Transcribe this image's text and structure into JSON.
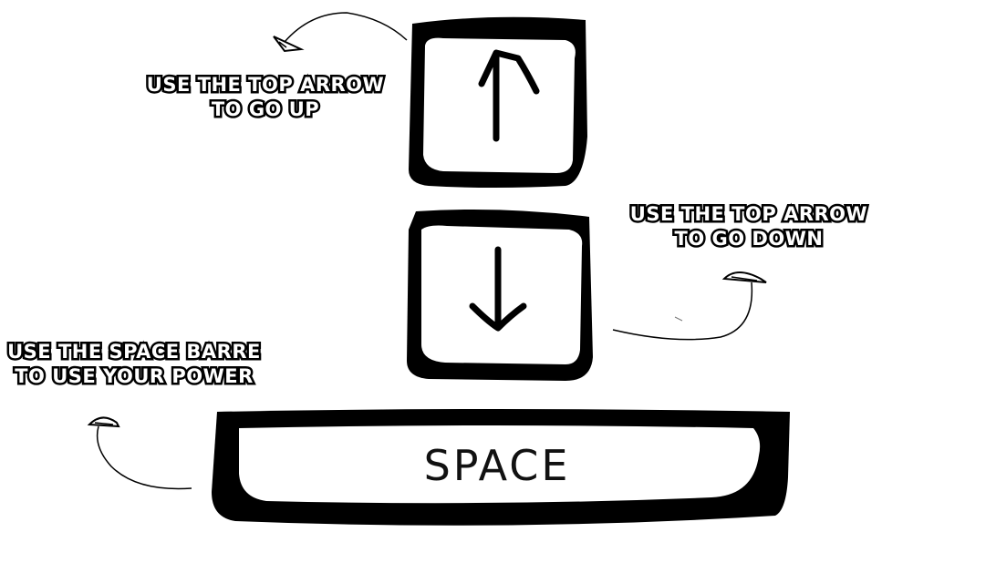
{
  "controls": {
    "up": {
      "key_icon": "arrow-up-icon",
      "caption_line1": "USE THE TOP ARROW",
      "caption_line2": "TO GO UP"
    },
    "down": {
      "key_icon": "arrow-down-icon",
      "caption_line1": "USE THE TOP ARROW",
      "caption_line2": "TO GO DOWN"
    },
    "space": {
      "key_label": "SPACE",
      "caption_line1": "USE THE SPACE BARRE",
      "caption_line2": "TO USE YOUR POWER"
    }
  },
  "colors": {
    "ink": "#000000",
    "paper": "#ffffff",
    "caption_fill": "#ffffff"
  }
}
